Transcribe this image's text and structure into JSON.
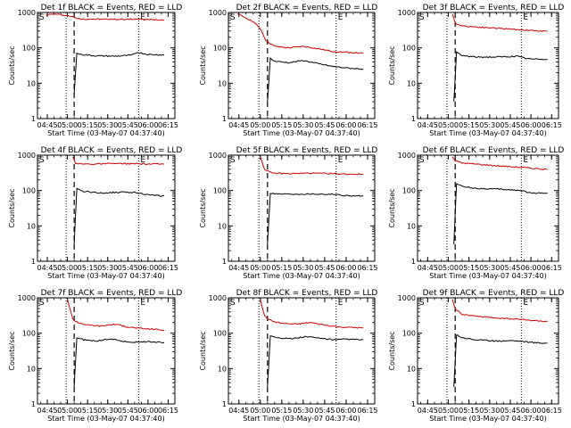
{
  "chart_data": [
    {
      "type": "line",
      "title": "Det 1f BLACK = Events, RED = LLD",
      "xlabel": "Start Time (03-May-07 04:37:40)",
      "ylabel": "Counts/sec",
      "yscale": "log",
      "ylim": [
        1,
        1000
      ],
      "x_ticks": [
        "04:45",
        "05:00",
        "05:15",
        "05:30",
        "05:45",
        "06:00",
        "06:15"
      ],
      "y_ticks": [
        "1",
        "10",
        "100",
        "1000"
      ],
      "markers": {
        "left_label": "S",
        "right_label": "E",
        "dotted": [
          "04:59",
          "05:53"
        ],
        "dashed": "05:05"
      },
      "series": [
        {
          "color": "#cc0000",
          "x": [
            "04:44",
            "04:50",
            "04:58",
            "05:03",
            "05:08",
            "05:20",
            "05:35",
            "05:50",
            "06:00",
            "06:12"
          ],
          "values": [
            850,
            900,
            840,
            780,
            660,
            650,
            640,
            650,
            630,
            620
          ]
        },
        {
          "color": "#000000",
          "x": [
            "05:05",
            "05:07",
            "05:10",
            "05:20",
            "05:35",
            "05:48",
            "05:52",
            "06:00",
            "06:12"
          ],
          "values": [
            5,
            70,
            65,
            60,
            58,
            62,
            75,
            65,
            63
          ]
        }
      ]
    },
    {
      "type": "line",
      "title": "Det 2f BLACK = Events, RED = LLD",
      "xlabel": "Start Time (03-May-07 04:37:40)",
      "ylabel": "Counts/sec",
      "yscale": "log",
      "ylim": [
        1,
        1000
      ],
      "x_ticks": [
        "04:45",
        "05:00",
        "05:15",
        "05:30",
        "05:45",
        "06:00",
        "06:15"
      ],
      "y_ticks": [
        "1",
        "10",
        "100",
        "1000"
      ],
      "markers": {
        "left_label": "S",
        "right_label": "E",
        "dotted": [
          "04:59",
          "05:53"
        ],
        "dashed": "05:05"
      },
      "series": [
        {
          "color": "#cc0000",
          "x": [
            "04:44",
            "04:50",
            "04:55",
            "05:00",
            "05:04",
            "05:10",
            "05:20",
            "05:30",
            "05:40",
            "05:50",
            "06:00",
            "06:12"
          ],
          "values": [
            900,
            700,
            550,
            350,
            160,
            110,
            100,
            110,
            95,
            80,
            75,
            70
          ]
        },
        {
          "color": "#000000",
          "x": [
            "05:05",
            "05:07",
            "05:10",
            "05:20",
            "05:30",
            "05:40",
            "05:50",
            "06:00",
            "06:12"
          ],
          "values": [
            3,
            50,
            42,
            38,
            44,
            36,
            30,
            27,
            25
          ]
        }
      ]
    },
    {
      "type": "line",
      "title": "Det 3f BLACK = Events, RED = LLD",
      "xlabel": "Start Time (03-May-07 04:37:40)",
      "ylabel": "Counts/sec",
      "yscale": "log",
      "ylim": [
        1,
        1000
      ],
      "x_ticks": [
        "04:45",
        "05:00",
        "05:15",
        "05:30",
        "05:45",
        "06:00",
        "06:15"
      ],
      "y_ticks": [
        "1",
        "10",
        "100",
        "1000"
      ],
      "markers": {
        "left_label": "S",
        "right_label": "E",
        "dotted": [
          "04:59",
          "05:53"
        ],
        "dashed": "05:05"
      },
      "series": [
        {
          "color": "#cc0000",
          "x": [
            "05:03",
            "05:05",
            "05:10",
            "05:20",
            "05:35",
            "05:50",
            "06:00",
            "06:12"
          ],
          "values": [
            900,
            500,
            420,
            390,
            360,
            330,
            310,
            290
          ]
        },
        {
          "color": "#000000",
          "x": [
            "05:04",
            "05:06",
            "05:10",
            "05:20",
            "05:35",
            "05:50",
            "05:55",
            "06:00",
            "06:12"
          ],
          "values": [
            3,
            75,
            60,
            55,
            55,
            58,
            52,
            48,
            48
          ]
        }
      ]
    },
    {
      "type": "line",
      "title": "Det 4f BLACK = Events, RED = LLD",
      "xlabel": "Start Time (03-May-07 04:37:40)",
      "ylabel": "Counts/sec",
      "yscale": "log",
      "ylim": [
        1,
        1000
      ],
      "x_ticks": [
        "04:45",
        "05:00",
        "05:15",
        "05:30",
        "05:45",
        "06:00",
        "06:15"
      ],
      "y_ticks": [
        "1",
        "10",
        "100",
        "1000"
      ],
      "markers": {
        "left_label": "S",
        "right_label": "E",
        "dotted": [
          "04:59",
          "05:53"
        ],
        "dashed": "05:05"
      },
      "series": [
        {
          "color": "#cc0000",
          "x": [
            "05:04",
            "05:06",
            "05:10",
            "05:20",
            "05:35",
            "05:50",
            "06:00",
            "06:12"
          ],
          "values": [
            900,
            600,
            560,
            560,
            580,
            570,
            560,
            560
          ]
        },
        {
          "color": "#000000",
          "x": [
            "05:05",
            "05:07",
            "05:12",
            "05:25",
            "05:40",
            "05:52",
            "06:00",
            "06:12"
          ],
          "values": [
            3,
            110,
            95,
            85,
            90,
            88,
            75,
            70
          ]
        }
      ]
    },
    {
      "type": "line",
      "title": "Det 5f BLACK = Events, RED = LLD",
      "xlabel": "Start Time (03-May-07 04:37:40)",
      "ylabel": "Counts/sec",
      "yscale": "log",
      "ylim": [
        1,
        1000
      ],
      "x_ticks": [
        "04:45",
        "05:00",
        "05:15",
        "05:30",
        "05:45",
        "06:00",
        "06:15"
      ],
      "y_ticks": [
        "1",
        "10",
        "100",
        "1000"
      ],
      "markers": {
        "left_label": "S",
        "right_label": "E",
        "dotted": [
          "04:59",
          "05:53"
        ],
        "dashed": "05:05"
      },
      "series": [
        {
          "color": "#cc0000",
          "x": [
            "05:00",
            "05:03",
            "05:08",
            "05:20",
            "05:35",
            "05:50",
            "06:00",
            "06:12"
          ],
          "values": [
            900,
            400,
            310,
            300,
            310,
            300,
            290,
            290
          ]
        },
        {
          "color": "#000000",
          "x": [
            "05:05",
            "05:07",
            "05:12",
            "05:25",
            "05:40",
            "05:52",
            "06:00",
            "06:12"
          ],
          "values": [
            3,
            85,
            80,
            80,
            80,
            78,
            72,
            70
          ]
        }
      ]
    },
    {
      "type": "line",
      "title": "Det 6f BLACK = Events, RED = LLD",
      "xlabel": "Start Time (03-May-07 04:37:40)",
      "ylabel": "Counts/sec",
      "yscale": "log",
      "ylim": [
        1,
        1000
      ],
      "x_ticks": [
        "04:45",
        "05:00",
        "05:15",
        "05:30",
        "05:45",
        "06:00",
        "06:15"
      ],
      "y_ticks": [
        "1",
        "10",
        "100",
        "1000"
      ],
      "markers": {
        "left_label": "S",
        "right_label": "E",
        "dotted": [
          "04:59",
          "05:53"
        ],
        "dashed": "05:05"
      },
      "series": [
        {
          "color": "#cc0000",
          "x": [
            "05:03",
            "05:05",
            "05:10",
            "05:20",
            "05:35",
            "05:50",
            "06:00",
            "06:12"
          ],
          "values": [
            900,
            700,
            600,
            560,
            500,
            460,
            430,
            390
          ]
        },
        {
          "color": "#000000",
          "x": [
            "05:04",
            "05:06",
            "05:10",
            "05:20",
            "05:35",
            "05:45",
            "05:52",
            "06:00",
            "06:12"
          ],
          "values": [
            3,
            160,
            130,
            115,
            110,
            105,
            100,
            85,
            85
          ]
        }
      ]
    },
    {
      "type": "line",
      "title": "Det 7f BLACK = Events, RED = LLD",
      "xlabel": "Start Time (03-May-07 04:37:40)",
      "ylabel": "Counts/sec",
      "yscale": "log",
      "ylim": [
        1,
        1000
      ],
      "x_ticks": [
        "04:45",
        "05:00",
        "05:15",
        "05:30",
        "05:45",
        "06:00",
        "06:15"
      ],
      "y_ticks": [
        "1",
        "10",
        "100",
        "1000"
      ],
      "markers": {
        "left_label": "S",
        "right_label": "E",
        "dotted": [
          "04:59",
          "05:53"
        ],
        "dashed": "05:05"
      },
      "series": [
        {
          "color": "#cc0000",
          "x": [
            "05:00",
            "05:04",
            "05:08",
            "05:15",
            "05:25",
            "05:35",
            "05:45",
            "05:55",
            "06:05",
            "06:12"
          ],
          "values": [
            900,
            250,
            200,
            170,
            160,
            180,
            150,
            135,
            130,
            120
          ]
        },
        {
          "color": "#000000",
          "x": [
            "05:05",
            "05:07",
            "05:12",
            "05:22",
            "05:32",
            "05:42",
            "05:52",
            "06:00",
            "06:12"
          ],
          "values": [
            3,
            75,
            65,
            60,
            70,
            58,
            55,
            58,
            55
          ]
        }
      ]
    },
    {
      "type": "line",
      "title": "Det 8f BLACK = Events, RED = LLD",
      "xlabel": "Start Time (03-May-07 04:37:40)",
      "ylabel": "Counts/sec",
      "yscale": "log",
      "ylim": [
        1,
        1000
      ],
      "x_ticks": [
        "04:45",
        "05:00",
        "05:15",
        "05:30",
        "05:45",
        "06:00",
        "06:15"
      ],
      "y_ticks": [
        "1",
        "10",
        "100",
        "1000"
      ],
      "markers": {
        "left_label": "S",
        "right_label": "E",
        "dotted": [
          "04:59",
          "05:53"
        ],
        "dashed": "05:05"
      },
      "series": [
        {
          "color": "#cc0000",
          "x": [
            "05:00",
            "05:03",
            "05:08",
            "05:15",
            "05:25",
            "05:35",
            "05:45",
            "05:55",
            "06:05",
            "06:12"
          ],
          "values": [
            900,
            300,
            220,
            190,
            180,
            200,
            170,
            150,
            145,
            140
          ]
        },
        {
          "color": "#000000",
          "x": [
            "05:05",
            "05:07",
            "05:12",
            "05:22",
            "05:32",
            "05:42",
            "05:52",
            "06:00",
            "06:12"
          ],
          "values": [
            3,
            85,
            75,
            70,
            80,
            72,
            65,
            68,
            65
          ]
        }
      ]
    },
    {
      "type": "line",
      "title": "Det 9f BLACK = Events, RED = LLD",
      "xlabel": "Start Time (03-May-07 04:37:40)",
      "ylabel": "Counts/sec",
      "yscale": "log",
      "ylim": [
        1,
        1000
      ],
      "x_ticks": [
        "04:45",
        "05:00",
        "05:15",
        "05:30",
        "05:45",
        "06:00",
        "06:15"
      ],
      "y_ticks": [
        "1",
        "10",
        "100",
        "1000"
      ],
      "markers": {
        "left_label": "S",
        "right_label": "E",
        "dotted": [
          "04:59",
          "05:53"
        ],
        "dashed": "05:05"
      },
      "series": [
        {
          "color": "#cc0000",
          "x": [
            "05:03",
            "05:05",
            "05:10",
            "05:20",
            "05:35",
            "05:50",
            "06:00",
            "06:12"
          ],
          "values": [
            900,
            500,
            340,
            300,
            270,
            250,
            230,
            215
          ]
        },
        {
          "color": "#000000",
          "x": [
            "05:04",
            "05:06",
            "05:10",
            "05:20",
            "05:35",
            "05:45",
            "05:52",
            "06:00",
            "06:12"
          ],
          "values": [
            3,
            90,
            75,
            65,
            60,
            62,
            60,
            55,
            52
          ]
        }
      ]
    }
  ]
}
